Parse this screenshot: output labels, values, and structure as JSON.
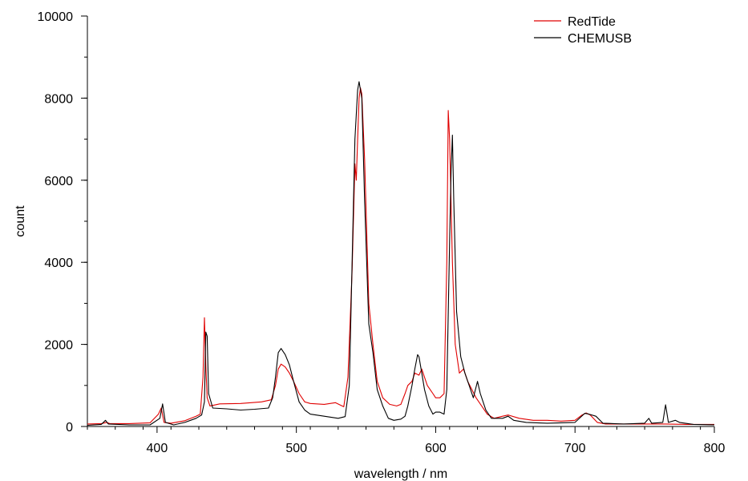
{
  "chart_data": {
    "type": "line",
    "title": "",
    "xlabel": "wavelength / nm",
    "ylabel": "count",
    "xlim": [
      350,
      800
    ],
    "ylim": [
      0,
      10000
    ],
    "x_ticks": [
      400,
      500,
      600,
      700,
      800
    ],
    "y_ticks": [
      0,
      2000,
      4000,
      6000,
      8000,
      10000
    ],
    "grid": false,
    "legend_position": "top-right",
    "series": [
      {
        "name": "RedTide",
        "color": "#e00000",
        "points": [
          [
            350,
            60
          ],
          [
            360,
            70
          ],
          [
            364,
            100
          ],
          [
            366,
            70
          ],
          [
            380,
            70
          ],
          [
            395,
            90
          ],
          [
            401,
            300
          ],
          [
            403,
            450
          ],
          [
            405,
            100
          ],
          [
            410,
            80
          ],
          [
            420,
            140
          ],
          [
            428,
            250
          ],
          [
            431,
            300
          ],
          [
            433,
            1200
          ],
          [
            434,
            2650
          ],
          [
            435,
            1500
          ],
          [
            436,
            700
          ],
          [
            438,
            500
          ],
          [
            445,
            550
          ],
          [
            460,
            560
          ],
          [
            475,
            600
          ],
          [
            482,
            650
          ],
          [
            485,
            1000
          ],
          [
            487,
            1400
          ],
          [
            489,
            1520
          ],
          [
            492,
            1450
          ],
          [
            495,
            1300
          ],
          [
            498,
            1100
          ],
          [
            502,
            800
          ],
          [
            506,
            600
          ],
          [
            510,
            560
          ],
          [
            520,
            540
          ],
          [
            528,
            580
          ],
          [
            534,
            480
          ],
          [
            537,
            1200
          ],
          [
            540,
            3800
          ],
          [
            542,
            6400
          ],
          [
            543,
            6000
          ],
          [
            544,
            7000
          ],
          [
            545,
            8000
          ],
          [
            546,
            8250
          ],
          [
            547,
            8100
          ],
          [
            549,
            6500
          ],
          [
            552,
            3000
          ],
          [
            555,
            2000
          ],
          [
            558,
            1100
          ],
          [
            562,
            700
          ],
          [
            567,
            540
          ],
          [
            572,
            500
          ],
          [
            575,
            540
          ],
          [
            578,
            800
          ],
          [
            580,
            1000
          ],
          [
            583,
            1100
          ],
          [
            585,
            1300
          ],
          [
            588,
            1250
          ],
          [
            590,
            1400
          ],
          [
            592,
            1200
          ],
          [
            594,
            1000
          ],
          [
            596,
            900
          ],
          [
            598,
            800
          ],
          [
            600,
            700
          ],
          [
            603,
            700
          ],
          [
            606,
            800
          ],
          [
            608,
            4000
          ],
          [
            609,
            7700
          ],
          [
            610,
            7000
          ],
          [
            612,
            4000
          ],
          [
            614,
            2000
          ],
          [
            617,
            1300
          ],
          [
            620,
            1400
          ],
          [
            623,
            1100
          ],
          [
            626,
            900
          ],
          [
            629,
            700
          ],
          [
            633,
            500
          ],
          [
            637,
            300
          ],
          [
            642,
            200
          ],
          [
            648,
            250
          ],
          [
            652,
            280
          ],
          [
            660,
            200
          ],
          [
            670,
            150
          ],
          [
            680,
            150
          ],
          [
            690,
            130
          ],
          [
            700,
            150
          ],
          [
            705,
            280
          ],
          [
            708,
            330
          ],
          [
            711,
            280
          ],
          [
            716,
            100
          ],
          [
            722,
            60
          ],
          [
            735,
            60
          ],
          [
            750,
            60
          ],
          [
            765,
            60
          ],
          [
            780,
            50
          ],
          [
            800,
            50
          ]
        ]
      },
      {
        "name": "CHEMUSB",
        "color": "#000000",
        "points": [
          [
            350,
            30
          ],
          [
            360,
            50
          ],
          [
            363,
            150
          ],
          [
            365,
            60
          ],
          [
            380,
            40
          ],
          [
            395,
            40
          ],
          [
            402,
            200
          ],
          [
            404,
            550
          ],
          [
            406,
            100
          ],
          [
            412,
            40
          ],
          [
            420,
            100
          ],
          [
            428,
            200
          ],
          [
            432,
            280
          ],
          [
            434,
            600
          ],
          [
            435,
            2300
          ],
          [
            436,
            2200
          ],
          [
            437,
            800
          ],
          [
            440,
            450
          ],
          [
            450,
            430
          ],
          [
            460,
            400
          ],
          [
            470,
            420
          ],
          [
            480,
            450
          ],
          [
            483,
            700
          ],
          [
            485,
            1200
          ],
          [
            487,
            1800
          ],
          [
            489,
            1900
          ],
          [
            492,
            1750
          ],
          [
            495,
            1500
          ],
          [
            498,
            1100
          ],
          [
            502,
            600
          ],
          [
            506,
            400
          ],
          [
            510,
            300
          ],
          [
            520,
            250
          ],
          [
            530,
            200
          ],
          [
            535,
            240
          ],
          [
            538,
            1000
          ],
          [
            540,
            4000
          ],
          [
            542,
            7000
          ],
          [
            544,
            8200
          ],
          [
            545,
            8400
          ],
          [
            547,
            8000
          ],
          [
            549,
            5500
          ],
          [
            552,
            2500
          ],
          [
            555,
            1800
          ],
          [
            558,
            900
          ],
          [
            562,
            500
          ],
          [
            566,
            200
          ],
          [
            570,
            150
          ],
          [
            575,
            180
          ],
          [
            578,
            250
          ],
          [
            580,
            500
          ],
          [
            583,
            1000
          ],
          [
            585,
            1400
          ],
          [
            587,
            1750
          ],
          [
            588,
            1700
          ],
          [
            590,
            1300
          ],
          [
            592,
            900
          ],
          [
            595,
            500
          ],
          [
            598,
            300
          ],
          [
            600,
            350
          ],
          [
            603,
            350
          ],
          [
            606,
            300
          ],
          [
            608,
            900
          ],
          [
            610,
            4500
          ],
          [
            611,
            6200
          ],
          [
            612,
            7100
          ],
          [
            613,
            5500
          ],
          [
            615,
            2800
          ],
          [
            618,
            1700
          ],
          [
            621,
            1300
          ],
          [
            624,
            1000
          ],
          [
            627,
            700
          ],
          [
            630,
            1100
          ],
          [
            632,
            800
          ],
          [
            636,
            400
          ],
          [
            640,
            200
          ],
          [
            648,
            200
          ],
          [
            652,
            250
          ],
          [
            656,
            150
          ],
          [
            665,
            100
          ],
          [
            680,
            80
          ],
          [
            700,
            100
          ],
          [
            707,
            320
          ],
          [
            710,
            300
          ],
          [
            715,
            250
          ],
          [
            720,
            80
          ],
          [
            735,
            60
          ],
          [
            750,
            80
          ],
          [
            753,
            200
          ],
          [
            755,
            80
          ],
          [
            763,
            100
          ],
          [
            765,
            530
          ],
          [
            767,
            100
          ],
          [
            772,
            150
          ],
          [
            775,
            100
          ],
          [
            785,
            50
          ],
          [
            800,
            40
          ]
        ]
      }
    ]
  }
}
